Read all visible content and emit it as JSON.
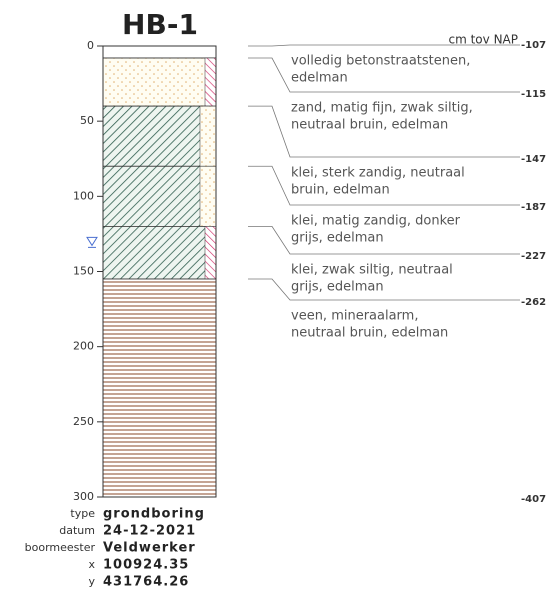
{
  "log": {
    "title": "HB-1",
    "unit": "cm tov NAP",
    "depth_lim": [
      0,
      300
    ],
    "depth_ticks": [
      0,
      50,
      100,
      150,
      200,
      250,
      300
    ],
    "boundaries": [
      0,
      8,
      40,
      80,
      120,
      155,
      300
    ],
    "nap": [
      -107,
      -115,
      -147,
      -187,
      -227,
      -262,
      -407
    ],
    "groundwater": 130,
    "layers": [
      {
        "lines": [
          "volledig betonstraatstenen,",
          "edelman"
        ],
        "pattern": "none",
        "strip": "none"
      },
      {
        "lines": [
          "zand, matig fijn, zwak siltig,",
          "neutraal bruin, edelman"
        ],
        "pattern": "dots",
        "strip": "pink"
      },
      {
        "lines": [
          "klei, sterk zandig, neutraal",
          "bruin, edelman"
        ],
        "pattern": "hatch",
        "strip": "dots"
      },
      {
        "lines": [
          "klei, matig zandig, donker",
          "grijs, edelman"
        ],
        "pattern": "hatch",
        "strip": "dots"
      },
      {
        "lines": [
          "klei, zwak siltig, neutraal",
          "grijs, edelman"
        ],
        "pattern": "hatch",
        "strip": "pink"
      },
      {
        "lines": [
          "veen, mineraalarm,",
          "neutraal bruin, edelman"
        ],
        "pattern": "peat",
        "strip": "none"
      }
    ],
    "info": [
      {
        "label": "type",
        "value": "grondboring"
      },
      {
        "label": "datum",
        "value": "24-12-2021"
      },
      {
        "label": "boormeester",
        "value": "Veldwerker"
      },
      {
        "label": "x",
        "value": "100924.35"
      },
      {
        "label": "y",
        "value": "431764.26"
      }
    ]
  }
}
